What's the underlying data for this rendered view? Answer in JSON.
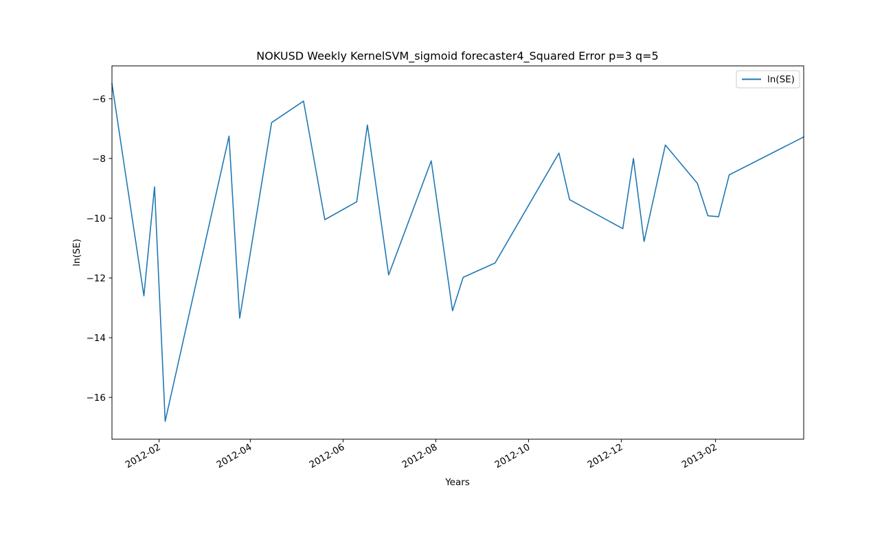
{
  "chart_data": {
    "type": "line",
    "title": "NOKUSD Weekly KernelSVM_sigmoid forecaster4_Squared Error p=3 q=5",
    "xlabel": "Years",
    "ylabel": "ln(SE)",
    "xlim": [
      "2012-01-01",
      "2013-03-31"
    ],
    "ylim": [
      -17.4,
      -4.9
    ],
    "x_ticks": [
      "2012-02-01",
      "2012-04-01",
      "2012-06-01",
      "2012-08-01",
      "2012-10-01",
      "2012-12-01",
      "2013-02-01"
    ],
    "x_tick_labels": [
      "2012-02",
      "2012-04",
      "2012-06",
      "2012-08",
      "2012-10",
      "2012-12",
      "2013-02"
    ],
    "y_ticks": [
      -6,
      -8,
      -10,
      -12,
      -14,
      -16
    ],
    "y_tick_labels": [
      "−6",
      "−8",
      "−10",
      "−12",
      "−14",
      "−16"
    ],
    "grid": false,
    "legend_position": "top-right",
    "series": [
      {
        "name": "ln(SE)",
        "color": "#1f77b4",
        "points": [
          {
            "x": "2012-01-01",
            "y": -5.5
          },
          {
            "x": "2012-01-22",
            "y": -12.6
          },
          {
            "x": "2012-01-29",
            "y": -8.95
          },
          {
            "x": "2012-02-05",
            "y": -16.8
          },
          {
            "x": "2012-03-18",
            "y": -7.25
          },
          {
            "x": "2012-03-25",
            "y": -13.35
          },
          {
            "x": "2012-04-15",
            "y": -6.8
          },
          {
            "x": "2012-05-06",
            "y": -6.08
          },
          {
            "x": "2012-05-20",
            "y": -10.05
          },
          {
            "x": "2012-06-10",
            "y": -9.45
          },
          {
            "x": "2012-06-17",
            "y": -6.88
          },
          {
            "x": "2012-07-01",
            "y": -11.9
          },
          {
            "x": "2012-07-29",
            "y": -8.08
          },
          {
            "x": "2012-08-12",
            "y": -13.1
          },
          {
            "x": "2012-08-19",
            "y": -11.98
          },
          {
            "x": "2012-09-09",
            "y": -11.5
          },
          {
            "x": "2012-10-21",
            "y": -7.82
          },
          {
            "x": "2012-10-28",
            "y": -9.38
          },
          {
            "x": "2012-12-02",
            "y": -10.35
          },
          {
            "x": "2012-12-09",
            "y": -8.0
          },
          {
            "x": "2012-12-16",
            "y": -10.78
          },
          {
            "x": "2012-12-30",
            "y": -7.55
          },
          {
            "x": "2013-01-20",
            "y": -8.83
          },
          {
            "x": "2013-01-27",
            "y": -9.92
          },
          {
            "x": "2013-02-03",
            "y": -9.95
          },
          {
            "x": "2013-02-10",
            "y": -8.55
          },
          {
            "x": "2013-03-31",
            "y": -7.28
          }
        ]
      }
    ]
  }
}
